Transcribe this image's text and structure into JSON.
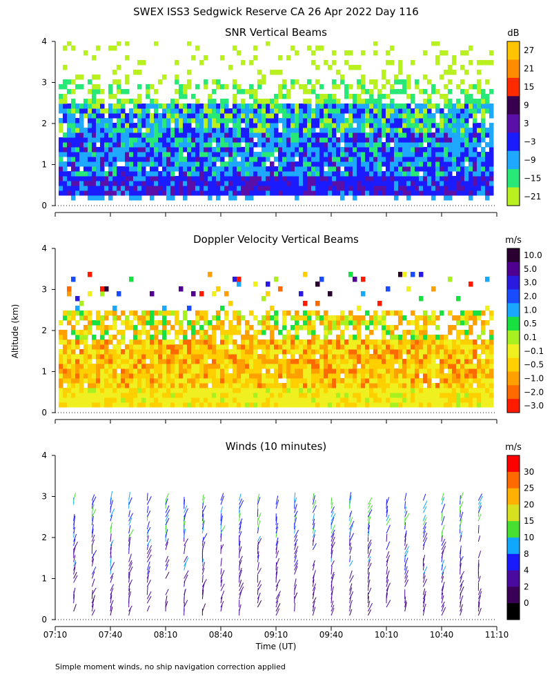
{
  "page": {
    "title": "SWEX ISS3 Sedgwick Reserve CA  26 Apr 2022 Day 116",
    "y_axis_label": "Altitude (km)",
    "x_axis_label": "Time (UT)",
    "footnote": "Simple moment winds, no ship navigation correction applied"
  },
  "chart_data": [
    {
      "type": "heatmap",
      "title": "SNR Vertical Beams",
      "xlabel": "Time (UT)",
      "ylabel": "Altitude (km)",
      "x_ticks": [
        "07:10",
        "07:40",
        "08:10",
        "08:40",
        "09:10",
        "09:40",
        "10:10",
        "10:40",
        "11:10"
      ],
      "y_ticks": [
        "0",
        "1",
        "2",
        "3",
        "4"
      ],
      "xlim": [
        "07:10",
        "11:10"
      ],
      "ylim": [
        0,
        4
      ],
      "colorbar": {
        "unit": "dB",
        "labels": [
          "27",
          "21",
          "15",
          "9",
          "3",
          "−3",
          "−9",
          "−15",
          "−21"
        ],
        "colors": [
          "#ffc400",
          "#ff8c00",
          "#ff2a00",
          "#3a0050",
          "#5a0fa8",
          "#1b1bff",
          "#1ea8ff",
          "#28e878",
          "#b8f020"
        ]
      },
      "description_values": {
        "strong_band_km": [
          0.3,
          0.6
        ],
        "main_layer_top_km": 2.4,
        "sparse_echo_top_km": 4.0
      }
    },
    {
      "type": "heatmap",
      "title": "Doppler Velocity Vertical Beams",
      "xlabel": "Time (UT)",
      "ylabel": "Altitude (km)",
      "x_ticks": [
        "07:10",
        "07:40",
        "08:10",
        "08:40",
        "09:10",
        "09:40",
        "10:10",
        "10:40",
        "11:10"
      ],
      "y_ticks": [
        "0",
        "1",
        "2",
        "3",
        "4"
      ],
      "xlim": [
        "07:10",
        "11:10"
      ],
      "ylim": [
        0,
        4
      ],
      "colorbar": {
        "unit": "m/s",
        "labels": [
          "10.0",
          "5.0",
          "3.0",
          "2.0",
          "1.0",
          "0.5",
          "0.1",
          "−0.1",
          "−0.5",
          "−1.0",
          "−2.0",
          "−3.0"
        ],
        "colors": [
          "#2a0030",
          "#500090",
          "#2a1ae0",
          "#1a4cff",
          "#1aa8ff",
          "#18e040",
          "#a8f020",
          "#f0f020",
          "#ffd000",
          "#ffa000",
          "#ff6a00",
          "#ff1a00"
        ]
      }
    },
    {
      "type": "scatter",
      "title": "Winds (10 minutes)",
      "xlabel": "Time (UT)",
      "ylabel": "Altitude (km)",
      "x_ticks": [
        "07:10",
        "07:40",
        "08:10",
        "08:40",
        "09:10",
        "09:40",
        "10:10",
        "10:40",
        "11:10"
      ],
      "y_ticks": [
        "0",
        "1",
        "2",
        "3",
        "4"
      ],
      "xlim": [
        "07:10",
        "11:10"
      ],
      "ylim": [
        0,
        4
      ],
      "colorbar": {
        "unit": "m/s",
        "labels": [
          "30",
          "25",
          "20",
          "15",
          "10",
          "8",
          "4",
          "2",
          "0"
        ],
        "colors": [
          "#ff0000",
          "#ff6a00",
          "#ffb000",
          "#d8e020",
          "#48e030",
          "#10a8ff",
          "#1a1aff",
          "#4a0aa0",
          "#3a0058",
          "#000000"
        ]
      },
      "profile_times": [
        "07:20",
        "07:30",
        "07:40",
        "07:50",
        "08:00",
        "08:10",
        "08:20",
        "08:30",
        "08:40",
        "08:50",
        "09:00",
        "09:10",
        "09:20",
        "09:30",
        "09:40",
        "09:50",
        "10:00",
        "10:10",
        "10:20",
        "10:30",
        "10:40",
        "10:50",
        "11:00"
      ]
    }
  ]
}
